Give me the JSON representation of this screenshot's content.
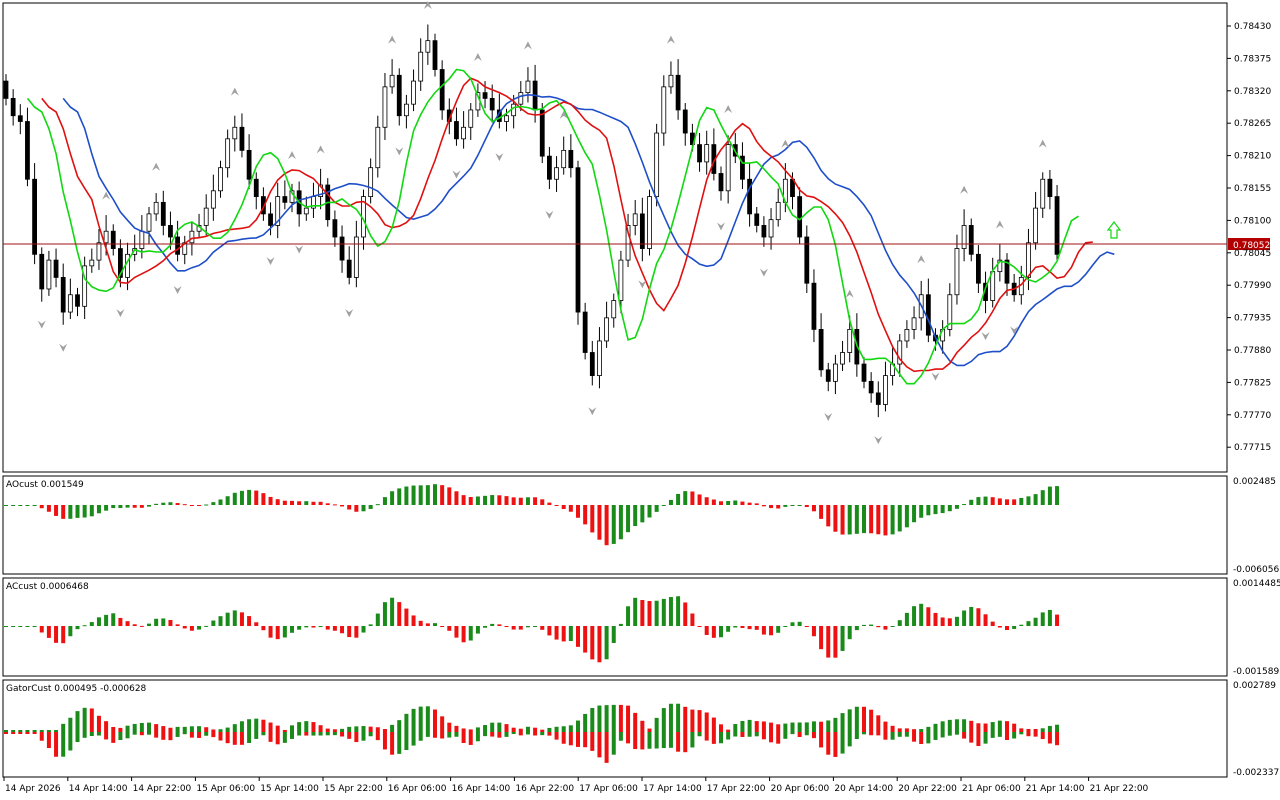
{
  "colors": {
    "background": "#ffffff",
    "frame": "#000000",
    "bull_body": "#ffffff",
    "bear_body": "#000000",
    "jaw": "#1f4fc8",
    "teeth": "#e01010",
    "lips": "#11d811",
    "bar_up": "#1a8a1a",
    "bar_down": "#ee1111",
    "current_line": "#a01010",
    "current_box": "#b30000",
    "fractal": "#a0a0a0"
  },
  "main": {
    "price_ticks": [
      "0.78430",
      "0.78375",
      "0.78320",
      "0.78265",
      "0.78210",
      "0.78155",
      "0.78100",
      "0.78045",
      "0.77990",
      "0.77935",
      "0.77880",
      "0.77825",
      "0.77770",
      "0.77715"
    ],
    "current_price": "0.78052",
    "current_price_value": 0.78052,
    "arrow_icon": "up-arrow-icon"
  },
  "ao": {
    "label": "AOcust 0.001549",
    "scale_top": "0.002485",
    "scale_bottom": "-0.006056"
  },
  "ac": {
    "label": "ACcust 0.0006468",
    "scale_top": "0.0014485",
    "scale_bottom": "-0.0015895"
  },
  "gator": {
    "label": "GatorCust 0.000495 -0.000628",
    "scale_top": "0.002789",
    "scale_bottom": "-0.002337"
  },
  "time_axis": {
    "labels": [
      "14 Apr 2026",
      "14 Apr 14:00",
      "14 Apr 22:00",
      "15 Apr 06:00",
      "15 Apr 14:00",
      "15 Apr 22:00",
      "16 Apr 06:00",
      "16 Apr 14:00",
      "16 Apr 22:00",
      "17 Apr 06:00",
      "17 Apr 14:00",
      "17 Apr 22:00",
      "20 Apr 06:00",
      "20 Apr 14:00",
      "20 Apr 22:00",
      "21 Apr 06:00",
      "21 Apr 14:00",
      "21 Apr 22:00"
    ]
  },
  "chart_data": {
    "type": "candlestick",
    "symbol_timeframe": "",
    "y_range": [
      0.7768,
      0.7848
    ],
    "candles_close": [
      0.7832,
      0.7829,
      0.7828,
      0.7818,
      0.7805,
      0.7799,
      0.7804,
      0.7801,
      0.7795,
      0.7798,
      0.7796,
      0.7803,
      0.7804,
      0.7807,
      0.7809,
      0.7806,
      0.7801,
      0.7805,
      0.7806,
      0.7809,
      0.7812,
      0.7814,
      0.781,
      0.7808,
      0.7805,
      0.7807,
      0.7809,
      0.781,
      0.7813,
      0.7816,
      0.782,
      0.7825,
      0.7827,
      0.7823,
      0.7818,
      0.7815,
      0.7812,
      0.781,
      0.7815,
      0.7814,
      0.7816,
      0.7812,
      0.7813,
      0.7815,
      0.7817,
      0.7811,
      0.7808,
      0.7804,
      0.7801,
      0.7808,
      0.7815,
      0.782,
      0.7827,
      0.7834,
      0.7836,
      0.7829,
      0.7831,
      0.7835,
      0.784,
      0.7842,
      0.7837,
      0.783,
      0.7828,
      0.7825,
      0.7827,
      0.783,
      0.7833,
      0.7832,
      0.783,
      0.7828,
      0.7829,
      0.7831,
      0.7833,
      0.7835,
      0.783,
      0.7822,
      0.7818,
      0.782,
      0.7823,
      0.782,
      0.7795,
      0.7788,
      0.7784,
      0.779,
      0.7794,
      0.7797,
      0.7804,
      0.781,
      0.7812,
      0.7806,
      0.7815,
      0.7826,
      0.7834,
      0.7836,
      0.783,
      0.7826,
      0.7824,
      0.7821,
      0.7824,
      0.7819,
      0.7816,
      0.7824,
      0.7822,
      0.7818,
      0.7812,
      0.781,
      0.7808,
      0.7811,
      0.7814,
      0.7818,
      0.7815,
      0.7808,
      0.78,
      0.7792,
      0.7785,
      0.7783,
      0.7786,
      0.7788,
      0.7792,
      0.7786,
      0.7783,
      0.7781,
      0.7779,
      0.7784,
      0.7786,
      0.779,
      0.7792,
      0.7794,
      0.7798,
      0.7791,
      0.779,
      0.7792,
      0.7798,
      0.7806,
      0.781,
      0.7805,
      0.78,
      0.7797,
      0.7802,
      0.7804,
      0.78,
      0.7798,
      0.7801,
      0.7807,
      0.7813,
      0.7818,
      0.7815,
      0.7805
    ],
    "series": [
      {
        "values": [
          0.784,
          0.7838,
          0.7835,
          0.783,
          0.7825,
          0.782,
          0.7815,
          0.7812,
          0.781,
          0.7808,
          0.7806,
          0.7805,
          0.7806,
          0.781,
          0.7814,
          0.7815,
          0.7815,
          0.7813,
          0.781,
          0.7808,
          0.7808,
          0.7808,
          0.7809,
          0.781,
          0.781,
          0.7811,
          0.7813,
          0.7816,
          0.7818,
          0.7822,
          0.7826,
          0.7829,
          0.783,
          0.7831,
          0.7831,
          0.7831,
          0.783,
          0.7829,
          0.7827,
          0.7824,
          0.782,
          0.7817,
          0.7815,
          0.7815,
          0.7818,
          0.7821,
          0.7821,
          0.7819,
          0.7818,
          0.7816,
          0.7812,
          0.7808,
          0.7805,
          0.7802,
          0.7801,
          0.78,
          0.7799,
          0.78,
          0.7801,
          0.7802,
          0.7803,
          0.7803,
          0.78,
          0.7799,
          0.7798
        ],
        "type": "jaw"
      },
      {
        "type": "teeth"
      },
      {
        "type": "lips"
      }
    ]
  }
}
